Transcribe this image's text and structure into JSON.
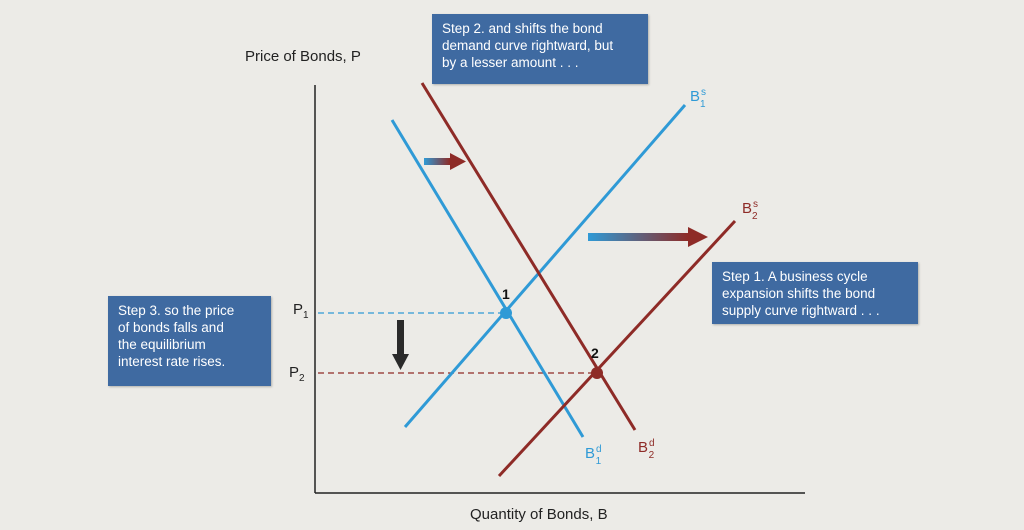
{
  "axes": {
    "y_title": "Price of Bonds, P",
    "x_title": "Quantity of Bonds, B"
  },
  "price_labels": {
    "p1": "P",
    "p1_sub": "1",
    "p2": "P",
    "p2_sub": "2"
  },
  "points": {
    "eq1": "1",
    "eq2": "2"
  },
  "curves": {
    "supply1": {
      "base": "B",
      "sup": "s",
      "sub": "1"
    },
    "supply2": {
      "base": "B",
      "sup": "s",
      "sub": "2"
    },
    "demand1": {
      "base": "B",
      "sup": "d",
      "sub": "1"
    },
    "demand2": {
      "base": "B",
      "sup": "d",
      "sub": "2"
    }
  },
  "callouts": {
    "step1": [
      "Step 1. A business cycle",
      "expansion shifts the bond",
      "supply curve rightward . . ."
    ],
    "step2": [
      "Step 2. and shifts the bond",
      "demand curve rightward, but",
      "by a lesser amount . . ."
    ],
    "step3": [
      "Step 3. so the price",
      "of bonds falls and",
      "the equilibrium",
      "interest rate rises."
    ]
  },
  "colors": {
    "original_curves": "#2f9ad6",
    "shifted_curves": "#8e2b27",
    "callout_bg": "#3f6aa1",
    "axis": "#222222",
    "arrow_down": "#2a2a2a"
  }
}
